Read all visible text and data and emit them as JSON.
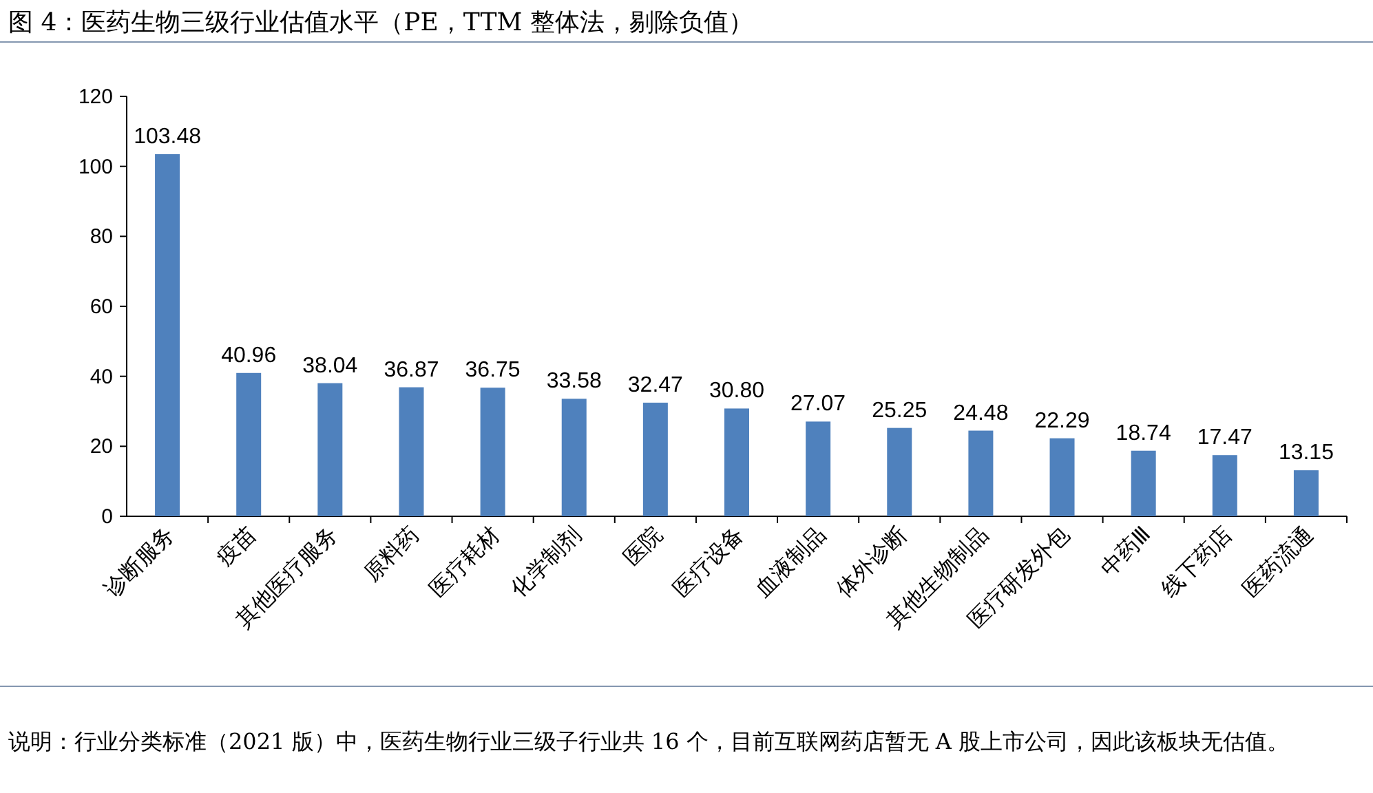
{
  "chart_data": {
    "type": "bar",
    "title": "图 4：医药生物三级行业估值水平（PE，TTM 整体法，剔除负值）",
    "categories": [
      "诊断服务",
      "疫苗",
      "其他医疗服务",
      "原料药",
      "医疗耗材",
      "化学制剂",
      "医院",
      "医疗设备",
      "血液制品",
      "体外诊断",
      "其他生物制品",
      "医疗研发外包",
      "中药Ⅲ",
      "线下药店",
      "医药流通"
    ],
    "values": [
      103.48,
      40.96,
      38.04,
      36.87,
      36.75,
      33.58,
      32.47,
      30.8,
      27.07,
      25.25,
      24.48,
      22.29,
      18.74,
      17.47,
      13.15
    ],
    "value_labels": [
      "103.48",
      "40.96",
      "38.04",
      "36.87",
      "36.75",
      "33.58",
      "32.47",
      "30.80",
      "27.07",
      "25.25",
      "24.48",
      "22.29",
      "18.74",
      "17.47",
      "13.15"
    ],
    "color": "#4f81bd",
    "ylim": [
      0,
      120
    ],
    "yticks": [
      0,
      20,
      40,
      60,
      80,
      100,
      120
    ],
    "annotations": [
      "说明：行业分类标准（2021 版）中，医药生物行业三级子行业共 16 个，目前互联网药店暂无 A 股上市公司，因此该板块无估值。"
    ]
  }
}
